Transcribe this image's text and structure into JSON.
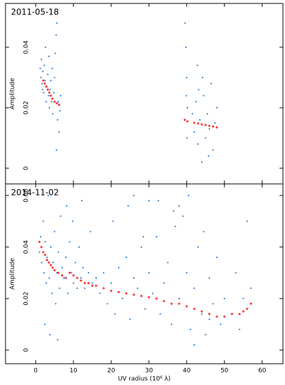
{
  "chart_data": [
    {
      "type": "scatter",
      "title": "2011-05-18",
      "ylabel": "Amplitude",
      "xlim": [
        -8,
        65.5
      ],
      "ylim": [
        -0.0052,
        0.0545
      ],
      "xticks": [
        0,
        10,
        20,
        30,
        40,
        50,
        60
      ],
      "yticks": [
        0,
        0.02,
        0.04
      ],
      "series": [
        {
          "color": "#2a7fd4",
          "x": [
            1.2,
            1.4,
            1.5,
            1.7,
            1.9,
            2.1,
            2.3,
            2.5,
            2.8,
            3.0,
            3.2,
            3.4,
            3.6,
            3.8,
            4.0,
            4.2,
            4.5,
            4.8,
            5.0,
            5.2,
            5.4,
            5.6,
            5.8,
            6.0,
            6.2,
            5.5,
            6.4,
            6.6,
            3.5,
            2.6,
            1.8,
            4.4,
            39.6,
            39.8,
            40.0,
            40.2,
            40.1,
            39.9,
            41.5,
            42,
            42.5,
            43,
            43.5,
            44,
            44.5,
            45,
            45.5,
            46,
            46.5,
            47,
            47.5,
            48,
            42.8,
            44.2,
            45.8,
            43.2
          ],
          "values": [
            0.033,
            0.03,
            0.036,
            0.028,
            0.032,
            0.025,
            0.034,
            0.029,
            0.022,
            0.027,
            0.031,
            0.024,
            0.02,
            0.026,
            0.029,
            0.022,
            0.018,
            0.025,
            0.03,
            0.038,
            0.044,
            0.048,
            0.016,
            0.022,
            0.012,
            0.006,
            0.019,
            0.024,
            0.037,
            0.04,
            0.026,
            0.033,
            0.048,
            0.04,
            0.03,
            0.02,
            0.01,
            0.024,
            0.018,
            0.012,
            0.022,
            0.008,
            0.016,
            0.002,
            0.024,
            0.01,
            0.018,
            0.013,
            0.028,
            0.006,
            0.015,
            0.02,
            0.034,
            0.03,
            0.004,
            0.026
          ]
        },
        {
          "color": "#ff3b3b",
          "x": [
            2,
            2.4,
            2.8,
            3.2,
            3.6,
            4,
            4.4,
            5,
            5.6,
            6.2,
            39.5,
            40.2,
            42,
            43,
            44,
            45,
            46,
            47,
            48
          ],
          "values": [
            0.029,
            0.028,
            0.027,
            0.026,
            0.025,
            0.024,
            0.023,
            0.022,
            0.0215,
            0.021,
            0.016,
            0.0155,
            0.015,
            0.0148,
            0.0145,
            0.0143,
            0.014,
            0.0138,
            0.0135
          ]
        }
      ]
    },
    {
      "type": "scatter",
      "title": "2014-11-02",
      "ylabel": "Amplitude",
      "xlabel": "UV radius  (10⁶ λ)",
      "xlim": [
        -8,
        65.5
      ],
      "ylim": [
        -0.0053,
        0.0645
      ],
      "xticks": [
        0,
        10,
        20,
        30,
        40,
        50,
        60
      ],
      "yticks": [
        0,
        0.02,
        0.04,
        0.06
      ],
      "series": [
        {
          "color": "#2a7fd4",
          "x": [
            1,
            1.3,
            1.6,
            2,
            2.2,
            2.5,
            2.8,
            3,
            3.3,
            3.6,
            4,
            4.3,
            4.6,
            5,
            5.3,
            5.6,
            6,
            6.3,
            6.6,
            7,
            7.5,
            8,
            8.5,
            9,
            9.5,
            10,
            10.5,
            11,
            11.5,
            12,
            12.5,
            13,
            14,
            15,
            16,
            2.4,
            3.8,
            5.8,
            8.2,
            9.8,
            12.2,
            14.5,
            17,
            18,
            19,
            20,
            21,
            22,
            23,
            24,
            25,
            26,
            27,
            28,
            29,
            30,
            31,
            32,
            33,
            34,
            35,
            36,
            37,
            38,
            39,
            40,
            41,
            42,
            43,
            44,
            45,
            46,
            47,
            48,
            49,
            50,
            20.5,
            24.5,
            28.5,
            32.5,
            36.5,
            40.5,
            44.5,
            52,
            53,
            54,
            55,
            56,
            57,
            38,
            42,
            46,
            30,
            26
          ],
          "values": [
            0.038,
            0.044,
            0.034,
            0.05,
            0.03,
            0.042,
            0.026,
            0.036,
            0.06,
            0.028,
            0.04,
            0.022,
            0.034,
            0.046,
            0.018,
            0.03,
            0.038,
            0.024,
            0.052,
            0.032,
            0.028,
            0.036,
            0.022,
            0.042,
            0.03,
            0.026,
            0.034,
            0.024,
            0.04,
            0.028,
            0.032,
            0.024,
            0.03,
            0.026,
            0.028,
            0.01,
            0.006,
            0.004,
            0.056,
            0.05,
            0.058,
            0.046,
            0.022,
            0.03,
            0.018,
            0.026,
            0.014,
            0.032,
            0.02,
            0.036,
            0.012,
            0.028,
            0.024,
            0.04,
            0.016,
            0.03,
            0.022,
            0.044,
            0.014,
            0.026,
            0.034,
            0.01,
            0.048,
            0.02,
            0.052,
            0.03,
            0.008,
            0.024,
            0.04,
            0.014,
            0.006,
            0.028,
            0.018,
            0.036,
            0.01,
            0.02,
            0.05,
            0.056,
            0.044,
            0.058,
            0.054,
            0.06,
            0.046,
            0.014,
            0.03,
            0.008,
            0.02,
            0.05,
            0.024,
            0.056,
            0.002,
            0.012,
            0.058,
            0.06
          ]
        },
        {
          "color": "#ff3b3b",
          "x": [
            1,
            1.5,
            2,
            2.5,
            3,
            3.5,
            4,
            4.5,
            5,
            6,
            7,
            8,
            9,
            10,
            11,
            12,
            13,
            14,
            15,
            16,
            18,
            20,
            22,
            24,
            26,
            28,
            30,
            32,
            34,
            36,
            38,
            40,
            42,
            44,
            46,
            48,
            50,
            52,
            54,
            55,
            56,
            57
          ],
          "values": [
            0.042,
            0.04,
            0.038,
            0.037,
            0.035,
            0.034,
            0.033,
            0.032,
            0.031,
            0.03,
            0.029,
            0.028,
            0.03,
            0.029,
            0.028,
            0.027,
            0.026,
            0.026,
            0.025,
            0.025,
            0.024,
            0.023,
            0.0225,
            0.022,
            0.0215,
            0.021,
            0.0205,
            0.02,
            0.019,
            0.018,
            0.018,
            0.017,
            0.016,
            0.015,
            0.014,
            0.013,
            0.013,
            0.014,
            0.014,
            0.015,
            0.016,
            0.018
          ]
        }
      ]
    }
  ]
}
